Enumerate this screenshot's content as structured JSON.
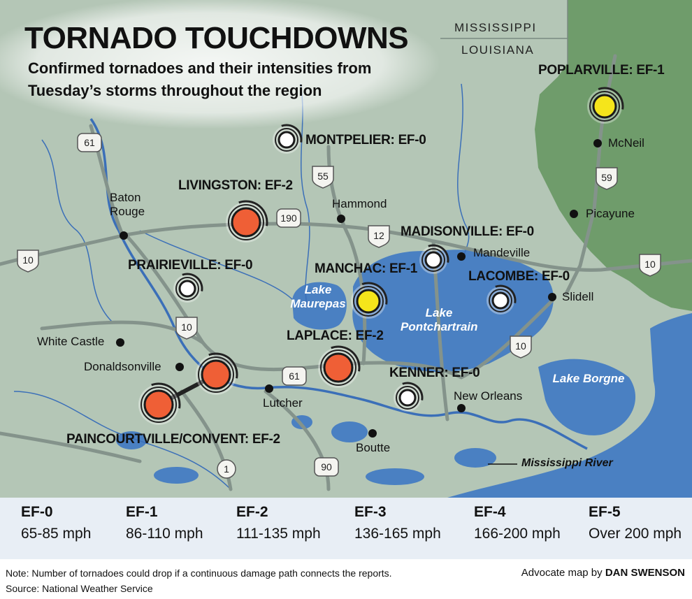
{
  "header": {
    "title": "TORNADO TOUCHDOWNS",
    "subtitle": "Confirmed tornadoes and their intensities from Tuesday’s storms throughout the region"
  },
  "states": [
    "MISSISSIPPI",
    "LOUISIANA"
  ],
  "tornadoes": [
    {
      "label": "POPLARVILLE: EF-1",
      "color": "#f5e51b"
    },
    {
      "label": "MONTPELIER: EF-0",
      "color": "#ffffff"
    },
    {
      "label": "LIVINGSTON: EF-2",
      "color": "#ef5f36"
    },
    {
      "label": "PRAIRIEVILLE: EF-0",
      "color": "#ffffff"
    },
    {
      "label": "MADISONVILLE: EF-0",
      "color": "#ffffff"
    },
    {
      "label": "MANCHAC: EF-1",
      "color": "#f5e51b"
    },
    {
      "label": "LACOMBE: EF-0",
      "color": "#ffffff"
    },
    {
      "label": "LAPLACE: EF-2",
      "color": "#ef5f36"
    },
    {
      "label": "KENNER: EF-0",
      "color": "#ffffff"
    },
    {
      "label": "PAINCOURTVILLE/CONVENT: EF-2",
      "color": "#ef5f36"
    }
  ],
  "cities": [
    "McNeil",
    "Picayune",
    "Hammond",
    "Mandeville",
    "Slidell",
    "White Castle",
    "Donaldsonville",
    "Lutcher",
    "New Orleans",
    "Boutte",
    "Baton Rouge"
  ],
  "water": [
    "Lake Maurepas",
    "Lake Pontchartrain",
    "Lake Borgne"
  ],
  "river_label": "Mississippi River",
  "highways": [
    "61",
    "55",
    "59",
    "190",
    "12",
    "10",
    "10",
    "10",
    "10",
    "61",
    "90",
    "1"
  ],
  "scale": [
    {
      "rating": "EF-0",
      "speed": "65-85 mph"
    },
    {
      "rating": "EF-1",
      "speed": "86-110 mph"
    },
    {
      "rating": "EF-2",
      "speed": "111-135 mph"
    },
    {
      "rating": "EF-3",
      "speed": "136-165 mph"
    },
    {
      "rating": "EF-4",
      "speed": "166-200 mph"
    },
    {
      "rating": "EF-5",
      "speed": "Over 200 mph"
    }
  ],
  "footer": {
    "note": "Note: Number of tornadoes could drop if a continuous damage path connects the reports.",
    "source": "Source: National Weather Service",
    "credit": "Advocate map by",
    "author": "DAN SWENSON"
  }
}
